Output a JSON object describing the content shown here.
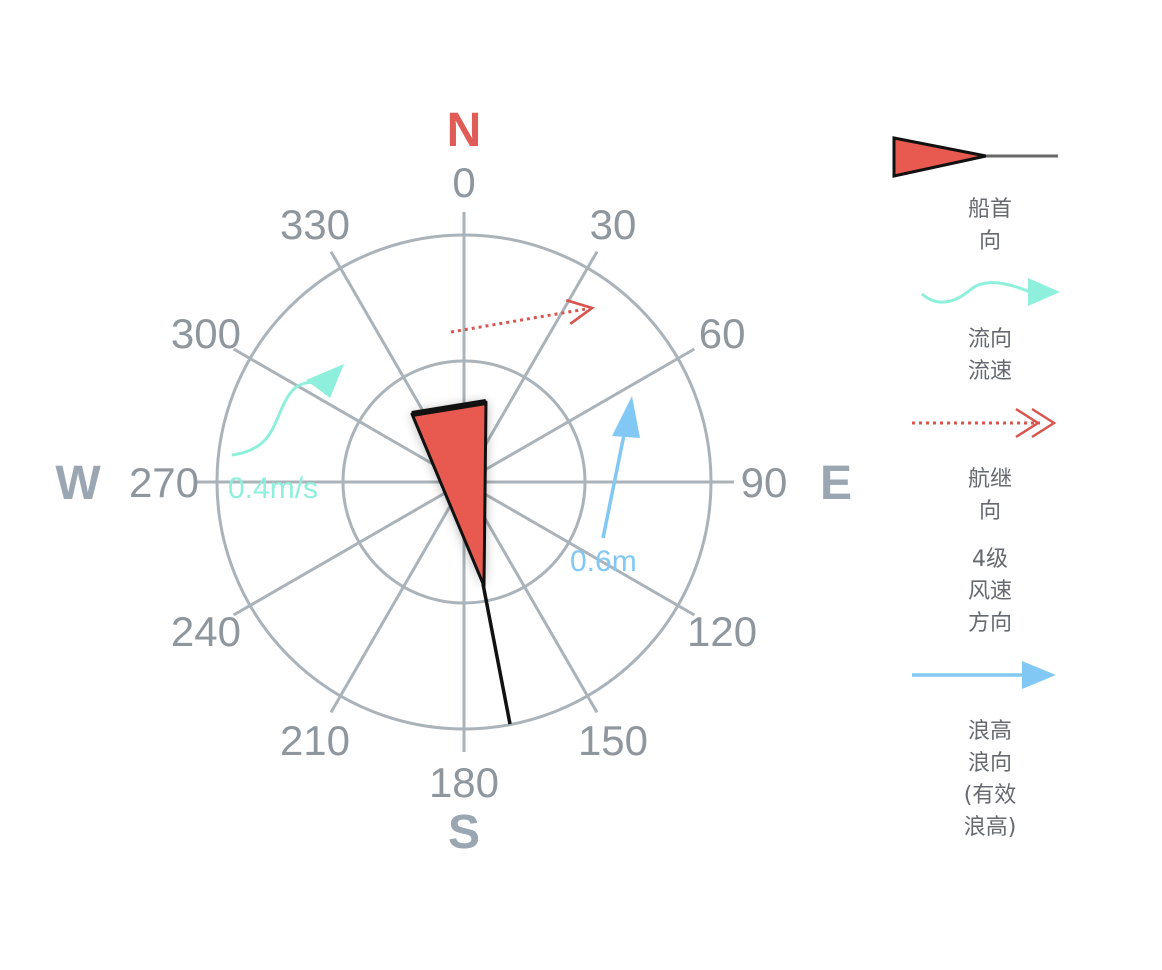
{
  "compass": {
    "north": "N",
    "south": "S",
    "east": "E",
    "west": "W",
    "north_color": "#e05d57",
    "cardinal_color": "#9aa6b2",
    "ticks": [
      "0",
      "30",
      "60",
      "90",
      "120",
      "150",
      "180",
      "210",
      "240",
      "270",
      "300",
      "330"
    ],
    "current_speed": "0.4m/s",
    "current_color": "#8ef0dc",
    "wave_height": "0.6m",
    "wave_color": "#82c8f5",
    "heading_color": "#e85a50",
    "track_color": "#d9544f"
  },
  "legend": {
    "heading": [
      "船首",
      "向"
    ],
    "current": [
      "流向",
      "流速"
    ],
    "track": [
      "航继",
      "向"
    ],
    "wind": [
      "4级",
      "风速",
      "方向"
    ],
    "wave": [
      "浪高",
      "浪向",
      "(有效",
      "浪高)"
    ]
  }
}
